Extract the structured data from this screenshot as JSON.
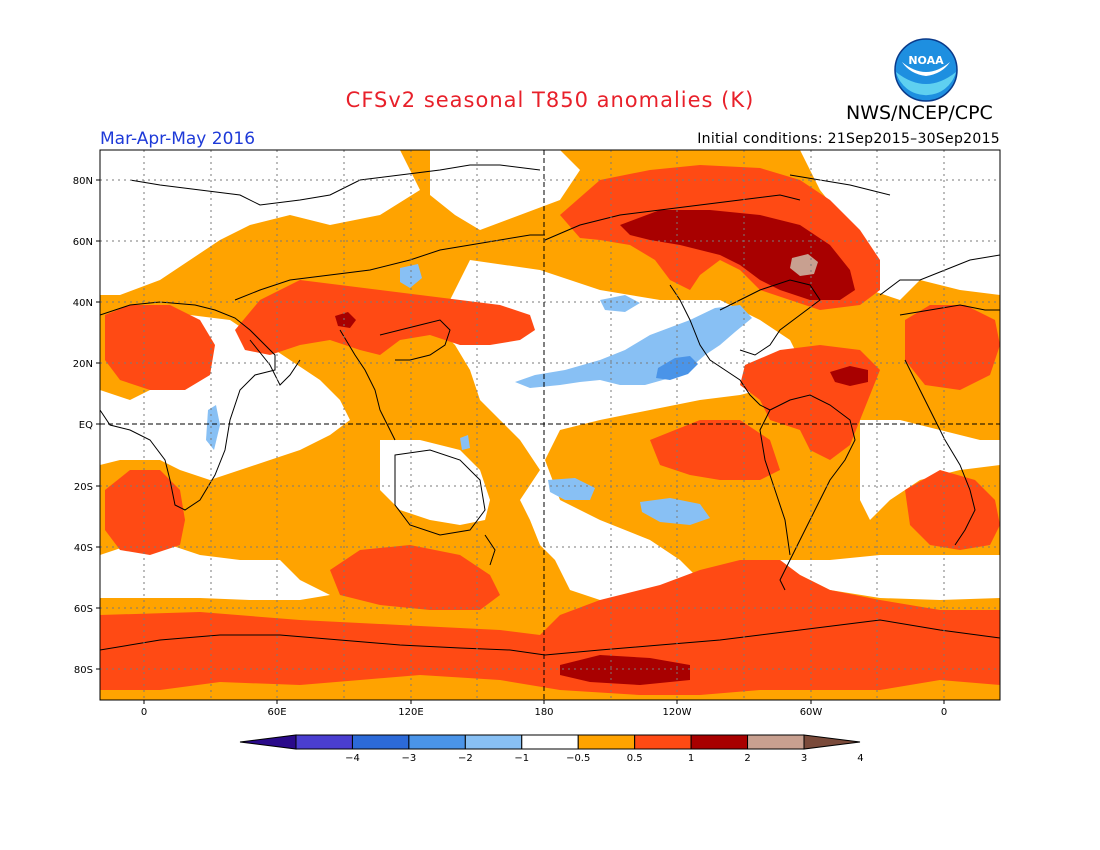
{
  "title": "CFSv2 seasonal T850 anomalies (K)",
  "agency": "NWS/NCEP/CPC",
  "season": "Mar-Apr-May 2016",
  "initial_conditions": "Initial conditions: 21Sep2015–30Sep2015",
  "logo_text": "NOAA",
  "lat_labels": [
    "80N",
    "60N",
    "40N",
    "20N",
    "EQ",
    "20S",
    "40S",
    "60S",
    "80S"
  ],
  "lon_labels": [
    "0",
    "60E",
    "120E",
    "180",
    "120W",
    "60W",
    "0"
  ],
  "colorbar": {
    "tick_labels": [
      "−4",
      "−3",
      "−2",
      "−1",
      "−0.5",
      "0.5",
      "1",
      "2",
      "3",
      "4"
    ],
    "colors": [
      "#2a0a8a",
      "#4a3ed0",
      "#2c6ad8",
      "#4a94e8",
      "#88c0f4",
      "#ffffff",
      "#ffa300",
      "#ff4a14",
      "#a80000",
      "#c8a090",
      "#7a4a3a"
    ]
  },
  "anomaly_colors": {
    "neg_half": "#88c0f4",
    "neg_one": "#4a94e8",
    "pos_half": "#ffa300",
    "pos_one": "#ff4a14",
    "pos_two": "#a80000",
    "pos_three": "#c8a090"
  }
}
